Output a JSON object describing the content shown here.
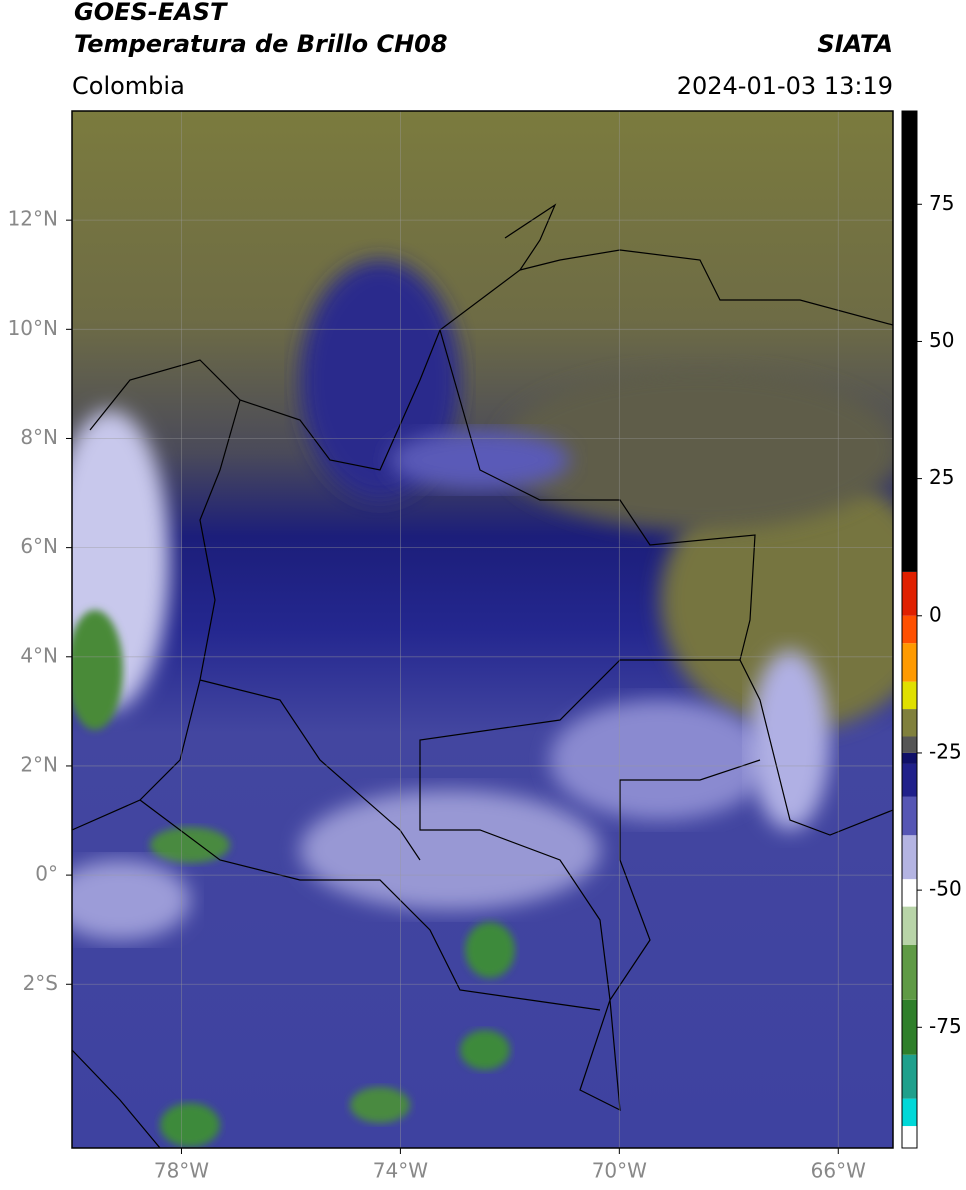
{
  "header": {
    "title": "GOES-EAST",
    "subtitle": "Temperatura de Brillo CH08",
    "source": "SIATA",
    "region": "Colombia",
    "timestamp": "2024-01-03 13:19"
  },
  "map": {
    "xlim": [
      -80,
      -65
    ],
    "ylim": [
      -5,
      14
    ],
    "xticks": [
      {
        "value": -78,
        "label": "78°W"
      },
      {
        "value": -74,
        "label": "74°W"
      },
      {
        "value": -70,
        "label": "70°W"
      },
      {
        "value": -66,
        "label": "66°W"
      }
    ],
    "yticks": [
      {
        "value": 12,
        "label": "12°N"
      },
      {
        "value": 10,
        "label": "10°N"
      },
      {
        "value": 8,
        "label": "8°N"
      },
      {
        "value": 6,
        "label": "6°N"
      },
      {
        "value": 4,
        "label": "4°N"
      },
      {
        "value": 2,
        "label": "2°N"
      },
      {
        "value": 0,
        "label": "0°"
      },
      {
        "value": -2,
        "label": "2°S"
      }
    ],
    "grid": true
  },
  "colorbar": {
    "lim": [
      -97,
      92
    ],
    "ticks": [
      75,
      50,
      25,
      0,
      -25,
      -50,
      -75
    ],
    "stops": [
      {
        "value": -97,
        "color": "#ffffff"
      },
      {
        "value": -93,
        "color": "#00d8d8"
      },
      {
        "value": -88,
        "color": "#1fa08c"
      },
      {
        "value": -80,
        "color": "#2f7f2a"
      },
      {
        "value": -70,
        "color": "#5f9a45"
      },
      {
        "value": -60,
        "color": "#b8d4a8"
      },
      {
        "value": -53,
        "color": "#ffffff"
      },
      {
        "value": -48,
        "color": "#b4b4e2"
      },
      {
        "value": -40,
        "color": "#5656b4"
      },
      {
        "value": -33,
        "color": "#20208a"
      },
      {
        "value": -27,
        "color": "#101068"
      },
      {
        "value": -25,
        "color": "#555555"
      },
      {
        "value": -22,
        "color": "#80803c"
      },
      {
        "value": -17,
        "color": "#e0e000"
      },
      {
        "value": -12,
        "color": "#ff9a00"
      },
      {
        "value": -5,
        "color": "#ff5000"
      },
      {
        "value": 0,
        "color": "#e02000"
      },
      {
        "value": 8,
        "color": "#000000"
      }
    ]
  }
}
